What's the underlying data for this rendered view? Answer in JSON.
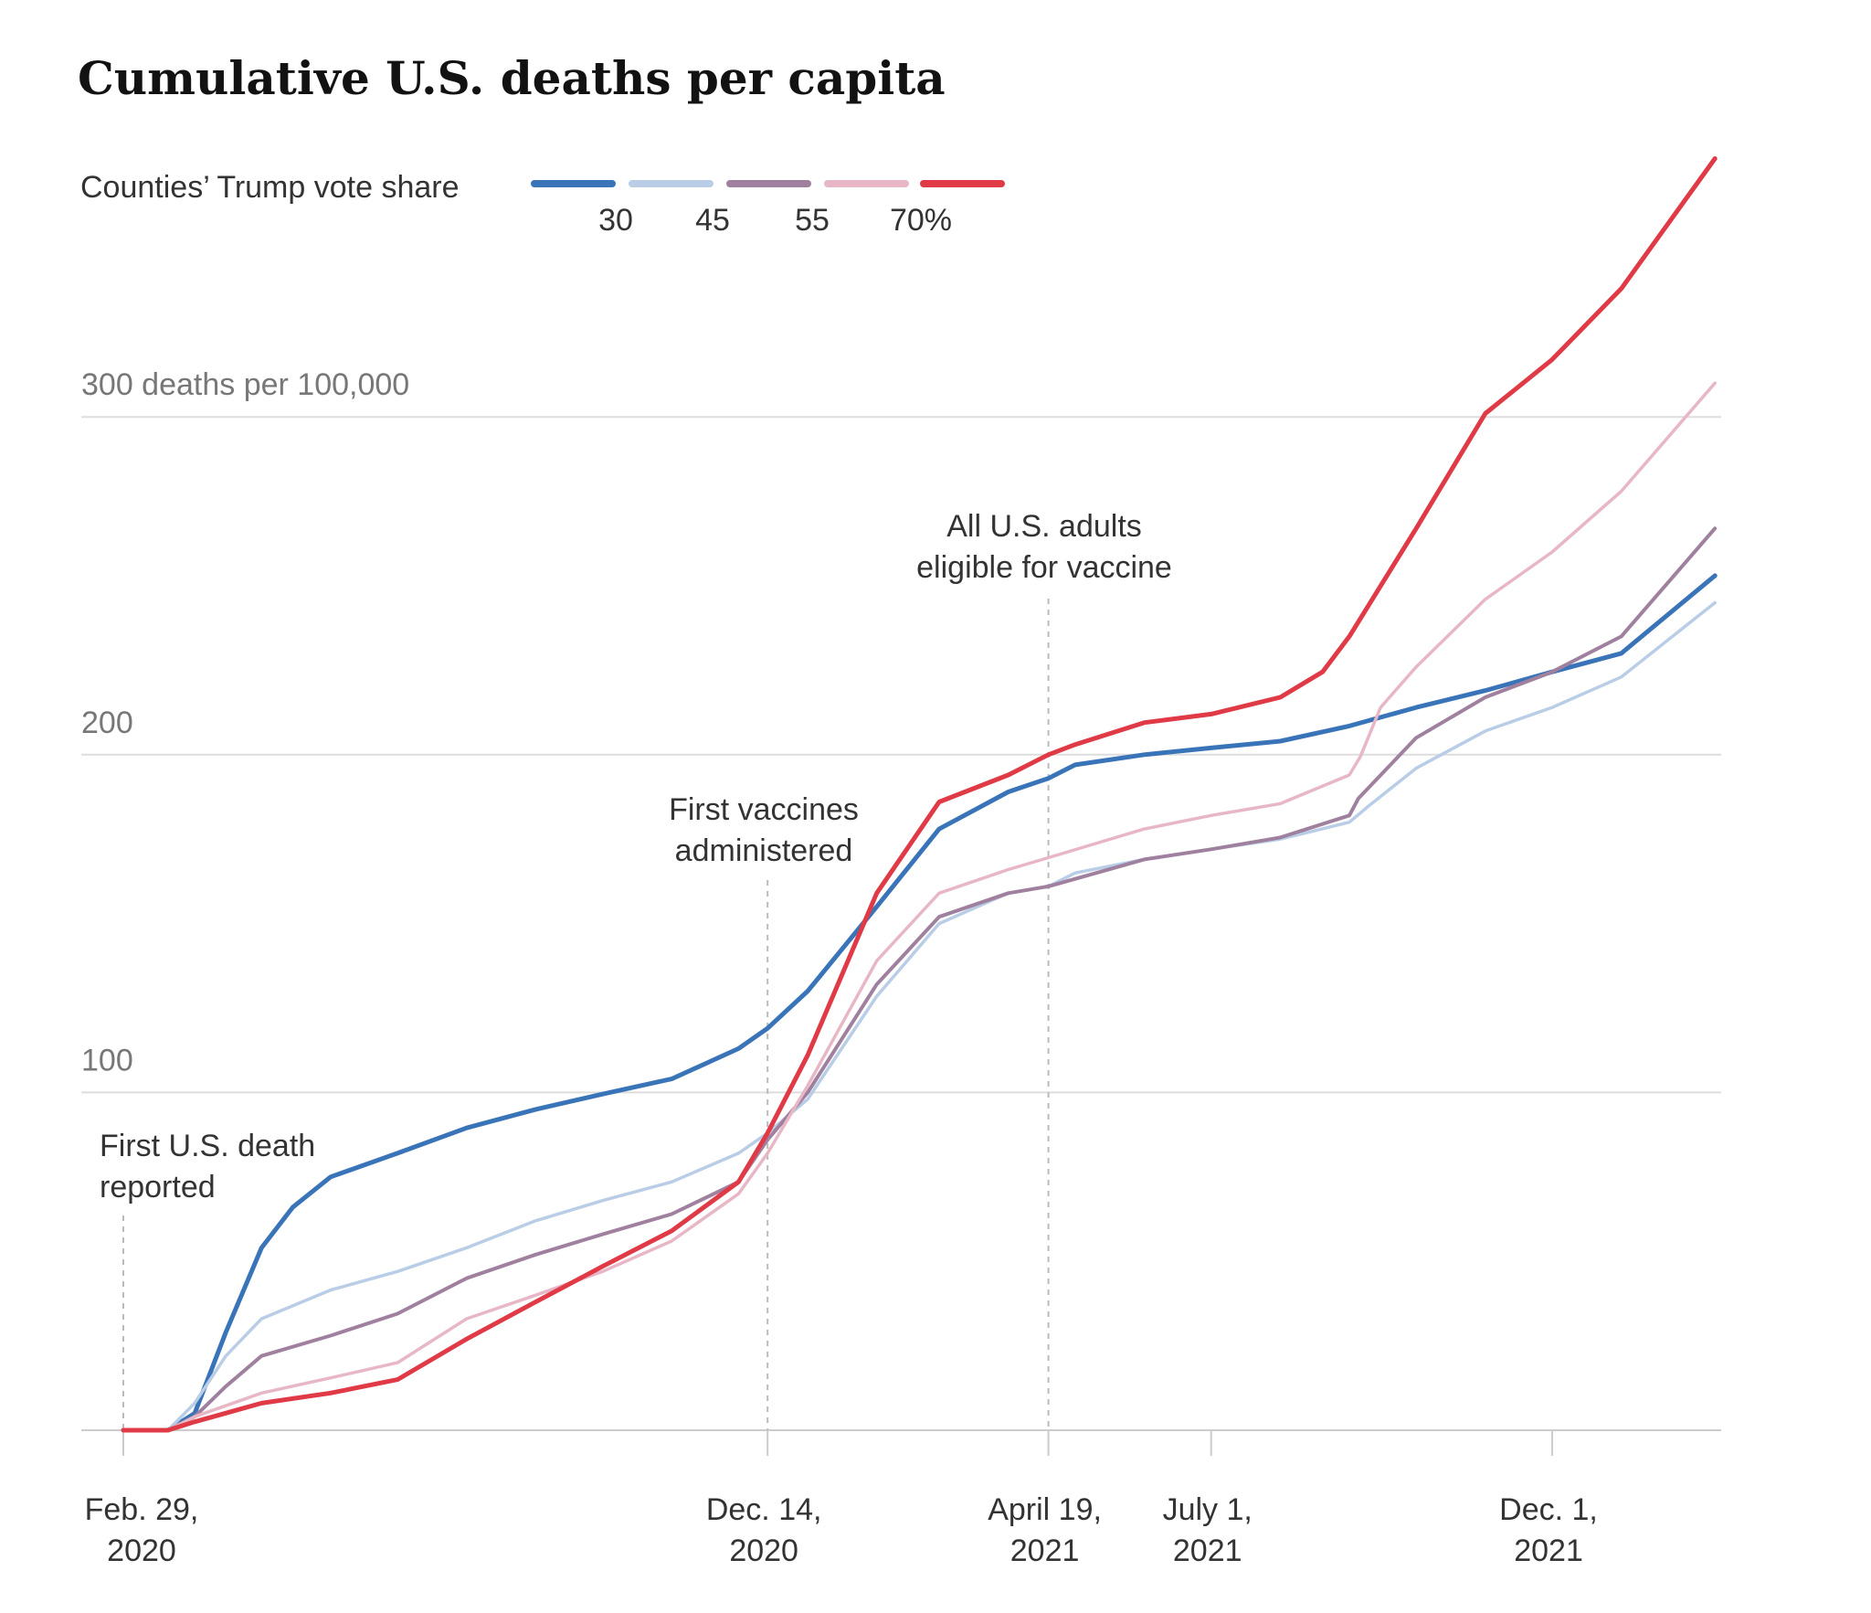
{
  "chart_data": {
    "type": "line",
    "title": "Cumulative U.S. deaths per capita",
    "legend": {
      "title": "Counties’ Trump vote share",
      "labels": [
        "30",
        "45",
        "55",
        "70%"
      ],
      "placement": "top-left"
    },
    "ylabel": "300 deaths per 100,000",
    "yticks": [
      {
        "value": 100,
        "label": "100"
      },
      {
        "value": 200,
        "label": "200"
      },
      {
        "value": 300,
        "label": "300 deaths per 100,000"
      }
    ],
    "ylim": [
      0,
      380
    ],
    "grid": true,
    "xlim": [
      "2020-02-29",
      "2022-02-12"
    ],
    "xticks": [
      {
        "date": "2020-02-29",
        "line1": "Feb. 29,",
        "line2": "2020"
      },
      {
        "date": "2020-12-14",
        "line1": "Dec. 14,",
        "line2": "2020"
      },
      {
        "date": "2021-04-19",
        "line1": "April 19,",
        "line2": "2021"
      },
      {
        "date": "2021-07-01",
        "line1": "July 1,",
        "line2": "2021"
      },
      {
        "date": "2021-12-01",
        "line1": "Dec. 1,",
        "line2": "2021"
      }
    ],
    "annotations": [
      {
        "date": "2020-02-29",
        "line1": "First U.S. death",
        "line2": "reported"
      },
      {
        "date": "2020-12-14",
        "line1": "First vaccines",
        "line2": "administered"
      },
      {
        "date": "2021-04-19",
        "line1": "All U.S. adults",
        "line2": "eligible for vaccine"
      }
    ],
    "series": [
      {
        "color": "#3a74b8",
        "points": [
          [
            "2020-02-29",
            0
          ],
          [
            "2020-03-20",
            0
          ],
          [
            "2020-04-01",
            5
          ],
          [
            "2020-04-15",
            29
          ],
          [
            "2020-05-01",
            54
          ],
          [
            "2020-05-15",
            66
          ],
          [
            "2020-06-01",
            75
          ],
          [
            "2020-07-01",
            82
          ],
          [
            "2020-08-01",
            89.5
          ],
          [
            "2020-09-01",
            95
          ],
          [
            "2020-10-01",
            99.5
          ],
          [
            "2020-11-01",
            104
          ],
          [
            "2020-12-01",
            113
          ],
          [
            "2020-12-14",
            119
          ],
          [
            "2021-01-01",
            130
          ],
          [
            "2021-02-01",
            155
          ],
          [
            "2021-03-01",
            178
          ],
          [
            "2021-04-01",
            189
          ],
          [
            "2021-04-19",
            193
          ],
          [
            "2021-05-01",
            197
          ],
          [
            "2021-06-01",
            200
          ],
          [
            "2021-07-01",
            202
          ],
          [
            "2021-08-01",
            204
          ],
          [
            "2021-09-01",
            208.5
          ],
          [
            "2021-10-01",
            214
          ],
          [
            "2021-11-01",
            219
          ],
          [
            "2021-12-01",
            224.5
          ],
          [
            "2022-01-01",
            230
          ],
          [
            "2022-02-12",
            253
          ]
        ]
      },
      {
        "color": "#b9cde6",
        "points": [
          [
            "2020-02-29",
            0
          ],
          [
            "2020-03-20",
            0
          ],
          [
            "2020-04-01",
            8
          ],
          [
            "2020-04-15",
            22
          ],
          [
            "2020-05-01",
            33
          ],
          [
            "2020-06-01",
            41.5
          ],
          [
            "2020-07-01",
            47
          ],
          [
            "2020-08-01",
            54
          ],
          [
            "2020-09-01",
            62
          ],
          [
            "2020-10-01",
            68
          ],
          [
            "2020-11-01",
            73.5
          ],
          [
            "2020-12-01",
            82
          ],
          [
            "2020-12-14",
            88
          ],
          [
            "2021-01-01",
            98
          ],
          [
            "2021-02-01",
            128.5
          ],
          [
            "2021-03-01",
            150
          ],
          [
            "2021-04-01",
            159
          ],
          [
            "2021-04-19",
            161
          ],
          [
            "2021-05-01",
            165
          ],
          [
            "2021-06-01",
            169
          ],
          [
            "2021-07-01",
            172
          ],
          [
            "2021-08-01",
            175
          ],
          [
            "2021-09-01",
            180
          ],
          [
            "2021-09-10",
            185
          ],
          [
            "2021-10-01",
            196
          ],
          [
            "2021-11-01",
            207
          ],
          [
            "2021-12-01",
            214
          ],
          [
            "2022-01-01",
            223
          ],
          [
            "2022-02-12",
            245
          ]
        ]
      },
      {
        "color": "#a0809f",
        "points": [
          [
            "2020-02-29",
            0
          ],
          [
            "2020-03-20",
            0
          ],
          [
            "2020-04-01",
            4
          ],
          [
            "2020-04-15",
            13
          ],
          [
            "2020-05-01",
            22
          ],
          [
            "2020-06-01",
            28
          ],
          [
            "2020-07-01",
            34.5
          ],
          [
            "2020-08-01",
            45
          ],
          [
            "2020-09-01",
            52
          ],
          [
            "2020-10-01",
            58
          ],
          [
            "2020-11-01",
            64
          ],
          [
            "2020-12-01",
            73.5
          ],
          [
            "2020-12-14",
            86
          ],
          [
            "2021-01-01",
            100
          ],
          [
            "2021-02-01",
            132
          ],
          [
            "2021-03-01",
            152
          ],
          [
            "2021-04-01",
            159
          ],
          [
            "2021-04-19",
            161
          ],
          [
            "2021-06-01",
            169
          ],
          [
            "2021-07-01",
            172
          ],
          [
            "2021-08-01",
            175.5
          ],
          [
            "2021-09-01",
            182
          ],
          [
            "2021-09-05",
            187
          ],
          [
            "2021-10-01",
            205
          ],
          [
            "2021-11-01",
            217
          ],
          [
            "2021-12-01",
            224.5
          ],
          [
            "2022-01-01",
            235
          ],
          [
            "2022-02-12",
            267
          ]
        ]
      },
      {
        "color": "#e8b7c6",
        "points": [
          [
            "2020-02-29",
            0
          ],
          [
            "2020-03-20",
            0
          ],
          [
            "2020-04-01",
            4
          ],
          [
            "2020-05-01",
            11
          ],
          [
            "2020-06-01",
            15.5
          ],
          [
            "2020-07-01",
            20
          ],
          [
            "2020-08-01",
            33
          ],
          [
            "2020-09-01",
            40
          ],
          [
            "2020-10-01",
            47
          ],
          [
            "2020-11-01",
            56
          ],
          [
            "2020-12-01",
            70
          ],
          [
            "2020-12-14",
            82
          ],
          [
            "2021-01-01",
            102
          ],
          [
            "2021-02-01",
            139
          ],
          [
            "2021-03-01",
            159
          ],
          [
            "2021-04-01",
            166
          ],
          [
            "2021-04-19",
            169.5
          ],
          [
            "2021-06-01",
            178
          ],
          [
            "2021-07-01",
            182
          ],
          [
            "2021-08-01",
            185.5
          ],
          [
            "2021-09-01",
            194
          ],
          [
            "2021-09-06",
            199.5
          ],
          [
            "2021-09-15",
            214
          ],
          [
            "2021-10-01",
            226
          ],
          [
            "2021-11-01",
            246
          ],
          [
            "2021-12-01",
            260
          ],
          [
            "2022-01-01",
            278
          ],
          [
            "2022-02-12",
            310
          ]
        ]
      },
      {
        "color": "#e03a47",
        "points": [
          [
            "2020-02-29",
            0
          ],
          [
            "2020-03-20",
            0
          ],
          [
            "2020-04-01",
            2.5
          ],
          [
            "2020-05-01",
            8
          ],
          [
            "2020-06-01",
            11
          ],
          [
            "2020-07-01",
            15
          ],
          [
            "2020-08-01",
            27
          ],
          [
            "2020-09-01",
            38
          ],
          [
            "2020-10-01",
            48.5
          ],
          [
            "2020-11-01",
            59
          ],
          [
            "2020-12-01",
            73.5
          ],
          [
            "2020-12-14",
            88
          ],
          [
            "2021-01-01",
            111
          ],
          [
            "2021-02-01",
            159
          ],
          [
            "2021-03-01",
            186
          ],
          [
            "2021-04-01",
            194
          ],
          [
            "2021-04-19",
            200
          ],
          [
            "2021-05-01",
            203
          ],
          [
            "2021-06-01",
            209.5
          ],
          [
            "2021-07-01",
            212
          ],
          [
            "2021-08-01",
            217
          ],
          [
            "2021-08-20",
            224.5
          ],
          [
            "2021-09-01",
            235
          ],
          [
            "2021-10-01",
            267
          ],
          [
            "2021-11-01",
            301
          ],
          [
            "2021-12-01",
            317
          ],
          [
            "2022-01-01",
            338
          ],
          [
            "2022-02-12",
            376.5
          ]
        ]
      }
    ]
  }
}
